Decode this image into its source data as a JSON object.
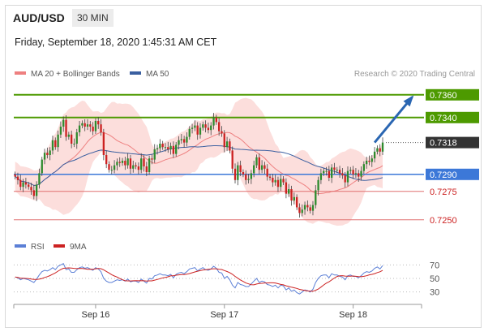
{
  "header": {
    "symbol": "AUD/USD",
    "timeframe": "30 MIN",
    "timestamp": "Friday, September 18, 2020 1:45:31 AM CET"
  },
  "legend": {
    "ma20_label": "MA 20 + Bollinger Bands",
    "ma50_label": "MA 50",
    "copyright": "Research © 2020 Trading Central"
  },
  "rsi_legend": {
    "rsi_label": "RSI",
    "ma9_label": "9MA"
  },
  "colors": {
    "resistance": "#4d9a00",
    "current": "#333333",
    "pivot": "#3c78d8",
    "support": "#e07070",
    "bands": "#fbd3d0",
    "ma20": "#ee8080",
    "ma50": "#3a5fa0",
    "bull": "#2e8b2e",
    "bear": "#cc2222",
    "arrow": "#2a66b2",
    "rsi": "#5b7fd6",
    "ma9": "#cc2222"
  },
  "chart_data": {
    "type": "candlestick",
    "y_range": [
      0.7242,
      0.7372
    ],
    "levels": [
      {
        "label": "0.7360",
        "value": 0.736,
        "kind": "resistance"
      },
      {
        "label": "0.7340",
        "value": 0.734,
        "kind": "resistance"
      },
      {
        "label": "0.7318",
        "value": 0.7318,
        "kind": "current"
      },
      {
        "label": "0.7290",
        "value": 0.729,
        "kind": "pivot"
      },
      {
        "label": "0.7275",
        "value": 0.7275,
        "kind": "support"
      },
      {
        "label": "0.7250",
        "value": 0.725,
        "kind": "support"
      }
    ],
    "x_ticks": [
      {
        "label": "Sep 16",
        "index": 30
      },
      {
        "label": "Sep 17",
        "index": 78
      },
      {
        "label": "Sep 18",
        "index": 126
      }
    ],
    "close": [
      0.7288,
      0.7285,
      0.7279,
      0.7283,
      0.7281,
      0.7279,
      0.7276,
      0.7271,
      0.7281,
      0.7291,
      0.7303,
      0.7309,
      0.7307,
      0.7311,
      0.732,
      0.7314,
      0.7325,
      0.7332,
      0.7338,
      0.7323,
      0.7325,
      0.7317,
      0.7317,
      0.7327,
      0.7333,
      0.7335,
      0.7332,
      0.7334,
      0.7332,
      0.7328,
      0.7337,
      0.7334,
      0.7327,
      0.7307,
      0.7299,
      0.7294,
      0.7294,
      0.7298,
      0.7301,
      0.73,
      0.7302,
      0.7298,
      0.7304,
      0.7295,
      0.7298,
      0.7297,
      0.7294,
      0.7304,
      0.7297,
      0.7292,
      0.7304,
      0.7303,
      0.7312,
      0.7313,
      0.7317,
      0.7314,
      0.7314,
      0.7312,
      0.7315,
      0.7308,
      0.7316,
      0.732,
      0.7321,
      0.7318,
      0.7323,
      0.733,
      0.7331,
      0.7333,
      0.7325,
      0.7331,
      0.7334,
      0.7331,
      0.7329,
      0.7333,
      0.734,
      0.7336,
      0.7328,
      0.7326,
      0.7314,
      0.7319,
      0.7311,
      0.7295,
      0.7285,
      0.7298,
      0.7292,
      0.729,
      0.7285,
      0.7286,
      0.7291,
      0.7298,
      0.7305,
      0.7294,
      0.7298,
      0.7295,
      0.7288,
      0.7287,
      0.7283,
      0.7285,
      0.7279,
      0.7286,
      0.7283,
      0.7273,
      0.7277,
      0.7267,
      0.727,
      0.7261,
      0.7256,
      0.7259,
      0.7263,
      0.7261,
      0.7258,
      0.7263,
      0.7276,
      0.7285,
      0.7291,
      0.7293,
      0.7293,
      0.7287,
      0.7296,
      0.7294,
      0.7294,
      0.7291,
      0.7289,
      0.7283,
      0.7293,
      0.7294,
      0.729,
      0.7291,
      0.7288,
      0.7293,
      0.7299,
      0.7302,
      0.7301,
      0.7304,
      0.731,
      0.7313,
      0.731,
      0.7318
    ],
    "high_low_spread": 0.0007,
    "forecast_arrow": {
      "from": [
        134,
        0.7318
      ],
      "to": [
        148,
        0.7358
      ]
    },
    "rsi": {
      "y_ticks": [
        30,
        50,
        70
      ],
      "y_range": [
        20,
        80
      ],
      "values": [
        52,
        51,
        48,
        50,
        49,
        48,
        46,
        44,
        49,
        55,
        60,
        62,
        61,
        63,
        66,
        63,
        68,
        70,
        72,
        63,
        64,
        59,
        59,
        63,
        66,
        67,
        65,
        66,
        64,
        62,
        66,
        64,
        60,
        50,
        46,
        44,
        44,
        46,
        48,
        47,
        48,
        46,
        49,
        45,
        46,
        46,
        44,
        49,
        46,
        43,
        50,
        49,
        54,
        55,
        57,
        55,
        55,
        54,
        56,
        51,
        56,
        58,
        59,
        57,
        60,
        64,
        65,
        66,
        61,
        64,
        66,
        63,
        62,
        64,
        68,
        65,
        59,
        58,
        50,
        53,
        48,
        40,
        36,
        44,
        41,
        40,
        38,
        38,
        42,
        46,
        50,
        44,
        46,
        45,
        41,
        40,
        38,
        40,
        36,
        40,
        39,
        33,
        36,
        31,
        33,
        29,
        27,
        30,
        33,
        32,
        30,
        34,
        44,
        50,
        54,
        55,
        55,
        51,
        57,
        55,
        55,
        53,
        52,
        48,
        54,
        55,
        53,
        53,
        51,
        54,
        58,
        60,
        59,
        61,
        65,
        67,
        64,
        69
      ]
    }
  }
}
